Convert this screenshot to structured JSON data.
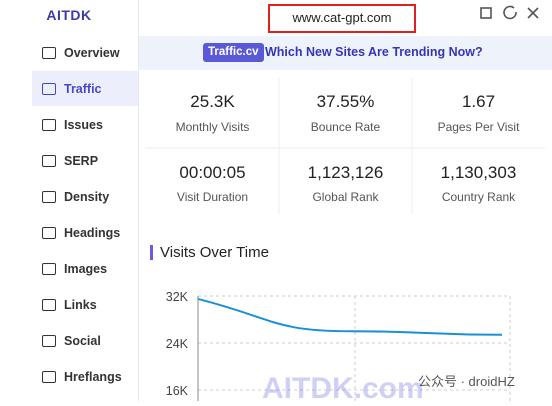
{
  "sidebar": {
    "logo": "AITDK",
    "items": [
      "Overview",
      "Traffic",
      "Issues",
      "SERP",
      "Density",
      "Headings",
      "Images",
      "Links",
      "Social",
      "Hreflangs"
    ],
    "active": 1
  },
  "header": {
    "url": "www.cat-gpt.com"
  },
  "banner": {
    "badge": "Traffic.cv",
    "text": "Which New Sites Are Trending Now?"
  },
  "metrics": [
    {
      "value": "25.3K",
      "label": "Monthly Visits"
    },
    {
      "value": "37.55%",
      "label": "Bounce Rate"
    },
    {
      "value": "1.67",
      "label": "Pages Per Visit"
    },
    {
      "value": "00:00:05",
      "label": "Visit Duration"
    },
    {
      "value": "1,123,126",
      "label": "Global Rank"
    },
    {
      "value": "1,130,303",
      "label": "Country Rank"
    }
  ],
  "chart": {
    "type": "line",
    "title": "Visits Over Time",
    "color": "#1a90d8",
    "values": [
      31.5,
      26.0,
      25.4
    ],
    "ylim": [
      16,
      32
    ],
    "yticks": [
      {
        "value": 16,
        "label": "16K"
      },
      {
        "value": 24,
        "label": "24K"
      },
      {
        "value": 32,
        "label": "32K"
      }
    ]
  },
  "watermark": {
    "brand": "AITDK.com",
    "account": "公众号 · droidHZ"
  }
}
